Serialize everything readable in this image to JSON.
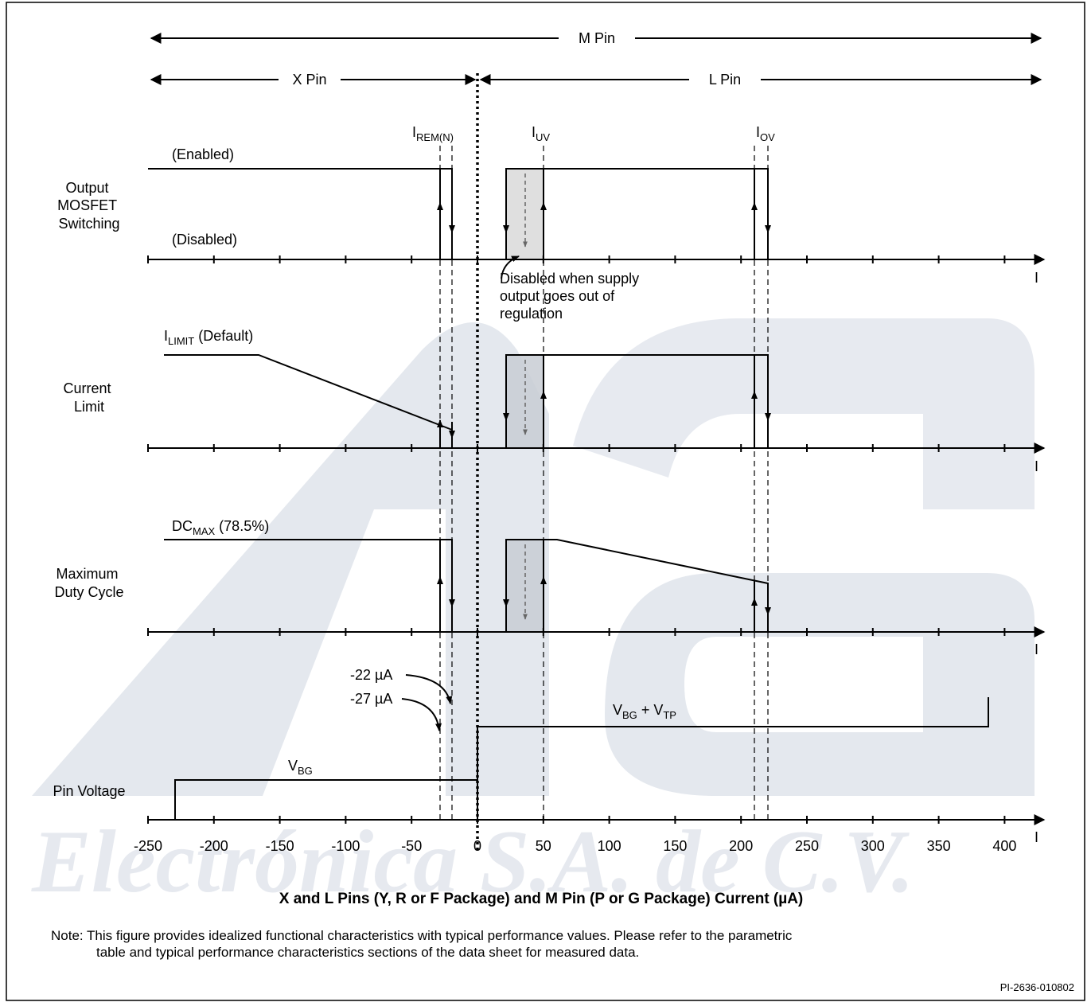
{
  "pin_ranges": {
    "m_pin": "M Pin",
    "x_pin": "X Pin",
    "l_pin": "L Pin"
  },
  "thresholds": {
    "i_rem_main": "I",
    "i_rem_sub": "REM(N)",
    "i_uv_main": "I",
    "i_uv_sub": "UV",
    "i_ov_main": "I",
    "i_ov_sub": "OV"
  },
  "rows": {
    "output_mosfet": {
      "label_lines": [
        "Output",
        "MOSFET",
        "Switching"
      ],
      "enabled": "(Enabled)",
      "disabled": "(Disabled)",
      "note_lines": [
        "Disabled when supply",
        "output goes out of",
        "regulation"
      ]
    },
    "current_limit": {
      "label_lines": [
        "Current",
        "Limit"
      ],
      "level_main": "I",
      "level_sub": "LIMIT",
      "level_suffix": " (Default)"
    },
    "max_duty_cycle": {
      "label_lines": [
        "Maximum",
        "Duty Cycle"
      ],
      "level_main": "DC",
      "level_sub": "MAX",
      "level_suffix": " (78.5%)"
    },
    "pin_voltage": {
      "label_lines": [
        "Pin Voltage"
      ],
      "vbg_main": "V",
      "vbg_sub": "BG",
      "vbgtp_main1": "V",
      "vbgtp_sub1": "BG",
      "vbgtp_mid": " + V",
      "vbgtp_sub2": "TP",
      "ann_22": "-22 µA",
      "ann_27": "-27 µA"
    }
  },
  "axis": {
    "unit_label": "I",
    "tick_labels": [
      "-250",
      "-200",
      "-150",
      "-100",
      "-50",
      "0",
      "50",
      "100",
      "150",
      "200",
      "250",
      "300",
      "350",
      "400"
    ],
    "title": "X and L Pins (Y, R or F Package) and M Pin (P or G Package) Current (µA)"
  },
  "note": {
    "line1": "Note: This figure provides idealized functional characteristics with typical performance values. Please refer to the parametric",
    "line2": "table and typical performance characteristics sections of the data sheet for measured data."
  },
  "figure_id": "PI-2636-010802",
  "watermark": {
    "logo_letters": "AG",
    "text": "Electrónica S.A. de C.V."
  },
  "colors": {
    "line": "#000000",
    "shade": "#d9d9d9",
    "watermark": "#e6e9ef"
  }
}
